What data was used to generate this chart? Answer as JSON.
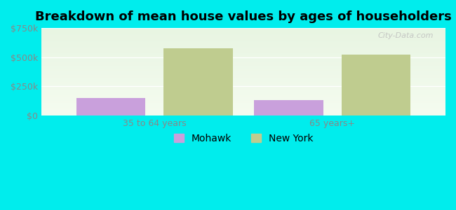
{
  "title": "Breakdown of mean house values by ages of householders",
  "categories": [
    "35 to 64 years",
    "65 years+"
  ],
  "series": {
    "Mohawk": [
      150000,
      130000
    ],
    "New York": [
      575000,
      520000
    ]
  },
  "colors": {
    "Mohawk": "#c9a0dc",
    "New York": "#bfcc8f"
  },
  "ylim": [
    0,
    750000
  ],
  "yticks": [
    0,
    250000,
    500000,
    750000
  ],
  "ytick_labels": [
    "$0",
    "$250k",
    "$500k",
    "$750k"
  ],
  "background_color": "#00eded",
  "plot_bg_top": "#e8f5e2",
  "plot_bg_bottom": "#f0faf0",
  "title_fontsize": 13,
  "tick_fontsize": 9,
  "legend_fontsize": 10,
  "bar_width": 0.18,
  "group_positions": [
    0.28,
    0.72
  ]
}
